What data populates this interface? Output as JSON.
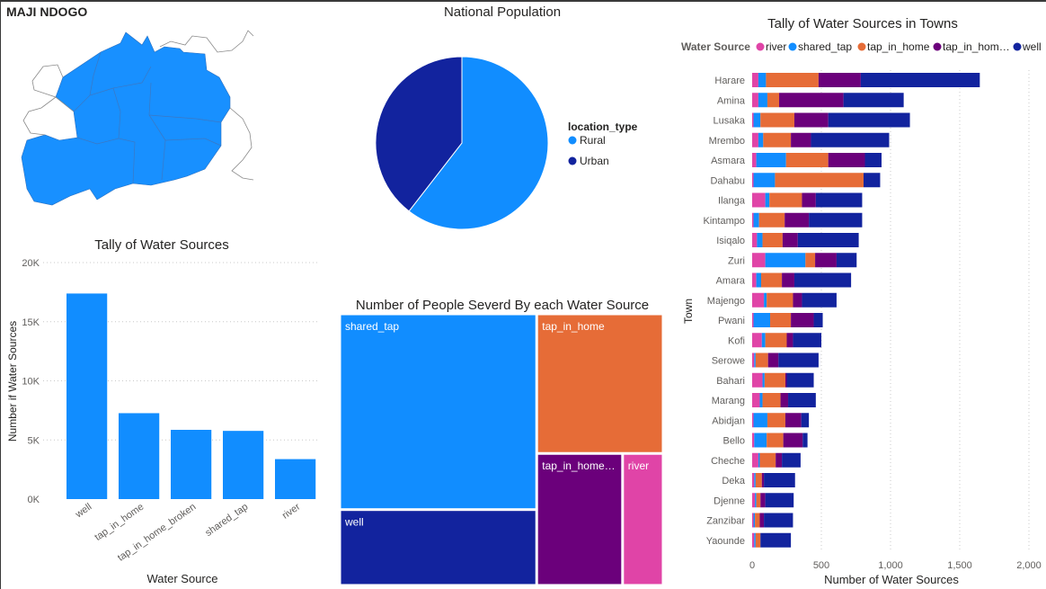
{
  "app": {
    "title": "MAJI NDOGO"
  },
  "colors": {
    "blue": "#118DFF",
    "navy": "#12239E",
    "orange": "#E66C37",
    "purple": "#6B007B",
    "pink": "#E044A7",
    "map_fill": "#1890FF"
  },
  "chart_data": [
    {
      "id": "national-population",
      "type": "pie",
      "title": "National Population",
      "legend_title": "location_type",
      "legend_position": "right",
      "slices": [
        {
          "name": "Rural",
          "value": 60.5,
          "color": "#118DFF"
        },
        {
          "name": "Urban",
          "value": 39.5,
          "color": "#12239E"
        }
      ]
    },
    {
      "id": "tally-water-sources",
      "type": "bar",
      "title": "Tally of Water Sources",
      "xlabel": "Water Source",
      "ylabel": "Number if Water Sources",
      "categories": [
        "well",
        "tap_in_home",
        "tap_in_home_broken",
        "shared_tap",
        "river"
      ],
      "values": [
        17383,
        7265,
        5856,
        5767,
        3379
      ],
      "ylim": [
        0,
        20000
      ],
      "yticks": [
        0,
        5000,
        10000,
        15000,
        20000
      ],
      "ytick_labels": [
        "0K",
        "5K",
        "10K",
        "15K",
        "20K"
      ],
      "grid": true,
      "color": "#118DFF"
    },
    {
      "id": "people-served",
      "type": "treemap",
      "title": "Number of People Severd By each Water Source",
      "items": [
        {
          "name": "shared_tap",
          "value": 43.9,
          "color": "#118DFF"
        },
        {
          "name": "tap_in_home",
          "value": 20.1,
          "color": "#E66C37"
        },
        {
          "name": "well",
          "value": 17.0,
          "color": "#12239E"
        },
        {
          "name": "tap_in_home…",
          "value": 12.9,
          "color": "#6B007B"
        },
        {
          "name": "river",
          "value": 6.1,
          "color": "#E044A7"
        }
      ]
    },
    {
      "id": "tally-towns",
      "type": "bar",
      "orientation": "horizontal",
      "stacked": true,
      "title": "Tally of Water Sources in Towns",
      "legend_title": "Water Source",
      "legend_position": "top",
      "xlabel": "Number of Water Sources",
      "ylabel": "Town",
      "xlim": [
        0,
        2000
      ],
      "xticks": [
        0,
        500,
        1000,
        1500,
        2000
      ],
      "xtick_labels": [
        "0",
        "500",
        "1,000",
        "1,500",
        "2,000"
      ],
      "grid": true,
      "categories": [
        "Harare",
        "Amina",
        "Lusaka",
        "Mrembo",
        "Asmara",
        "Dahabu",
        "Ilanga",
        "Kintampo",
        "Isiqalo",
        "Zuri",
        "Amara",
        "Majengo",
        "Pwani",
        "Kofi",
        "Serowe",
        "Bahari",
        "Marang",
        "Abidjan",
        "Bello",
        "Cheche",
        "Deka",
        "Djenne",
        "Zanzibar",
        "Yaounde"
      ],
      "series": [
        {
          "name": "river",
          "color": "#E044A7",
          "values": [
            45,
            45,
            10,
            45,
            30,
            10,
            95,
            10,
            35,
            95,
            30,
            85,
            10,
            70,
            15,
            75,
            55,
            10,
            15,
            45,
            15,
            20,
            10,
            15
          ]
        },
        {
          "name": "shared_tap",
          "color": "#118DFF",
          "values": [
            55,
            65,
            50,
            35,
            215,
            155,
            30,
            40,
            40,
            290,
            35,
            20,
            120,
            25,
            10,
            15,
            20,
            100,
            90,
            10,
            10,
            10,
            10,
            10
          ]
        },
        {
          "name": "tap_in_home",
          "color": "#E66C37",
          "values": [
            380,
            85,
            245,
            200,
            305,
            640,
            235,
            185,
            145,
            70,
            150,
            190,
            150,
            155,
            90,
            150,
            130,
            130,
            120,
            115,
            45,
            30,
            35,
            35
          ]
        },
        {
          "name": "tap_in_home_broken",
          "color": "#6B007B",
          "values": [
            305,
            465,
            245,
            145,
            265,
            0,
            100,
            175,
            110,
            155,
            90,
            65,
            165,
            45,
            75,
            10,
            55,
            115,
            140,
            45,
            15,
            35,
            30,
            0
          ]
        },
        {
          "name": "well",
          "color": "#12239E",
          "values": [
            860,
            435,
            590,
            565,
            120,
            120,
            335,
            385,
            440,
            145,
            410,
            250,
            65,
            205,
            290,
            195,
            200,
            55,
            35,
            135,
            225,
            205,
            210,
            220
          ]
        }
      ]
    }
  ]
}
